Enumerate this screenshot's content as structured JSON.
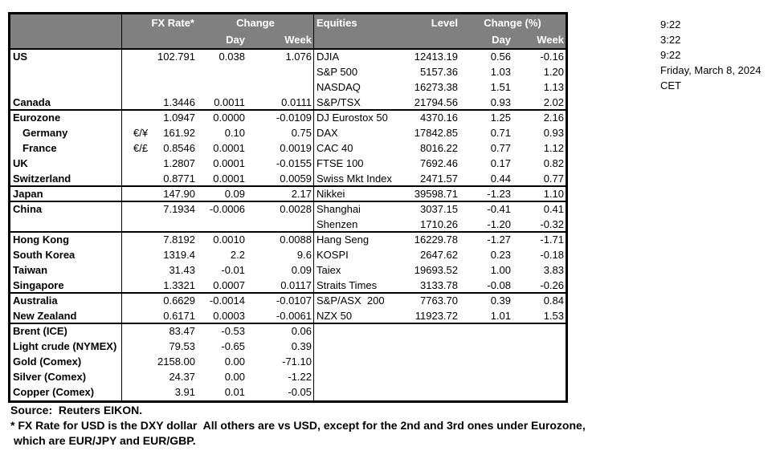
{
  "colors": {
    "header_bg": "#808080",
    "header_text": "#ffffff",
    "border": "#000000",
    "background": "#ffffff"
  },
  "header": {
    "fx": {
      "rate": "FX Rate*",
      "change": "Change",
      "day": "Day",
      "week": "Week"
    },
    "equities": {
      "label": "Equities",
      "level": "Level",
      "change": "Change (%)",
      "day": "Day",
      "week": "Week"
    }
  },
  "fx_rows": [
    {
      "label": "US",
      "pair": "",
      "rate": "102.791",
      "day": "0.038",
      "week": "1.076",
      "indent": false,
      "end": false
    },
    {
      "label": "",
      "pair": "",
      "rate": "",
      "day": "",
      "week": "",
      "indent": false,
      "end": false
    },
    {
      "label": "",
      "pair": "",
      "rate": "",
      "day": "",
      "week": "",
      "indent": false,
      "end": false
    },
    {
      "label": "Canada",
      "pair": "",
      "rate": "1.3446",
      "day": "0.0011",
      "week": "0.0111",
      "indent": false,
      "end": true
    },
    {
      "label": "Eurozone",
      "pair": "",
      "rate": "1.0947",
      "day": "0.0000",
      "week": "-0.0109",
      "indent": false,
      "end": false
    },
    {
      "label": "Germany",
      "pair": "€/¥",
      "rate": "161.92",
      "day": "0.10",
      "week": "0.75",
      "indent": true,
      "end": false
    },
    {
      "label": "France",
      "pair": "€/£",
      "rate": "0.8546",
      "day": "0.0001",
      "week": "0.0019",
      "indent": true,
      "end": false
    },
    {
      "label": "UK",
      "pair": "",
      "rate": "1.2807",
      "day": "0.0001",
      "week": "-0.0155",
      "indent": false,
      "end": false
    },
    {
      "label": "Switzerland",
      "pair": "",
      "rate": "0.8771",
      "day": "0.0001",
      "week": "0.0059",
      "indent": false,
      "end": true
    },
    {
      "label": "Japan",
      "pair": "",
      "rate": "147.90",
      "day": "0.09",
      "week": "2.17",
      "indent": false,
      "end": true
    },
    {
      "label": "China",
      "pair": "",
      "rate": "7.1934",
      "day": "-0.0006",
      "week": "0.0028",
      "indent": false,
      "end": false
    },
    {
      "label": "",
      "pair": "",
      "rate": "",
      "day": "",
      "week": "",
      "indent": false,
      "end": true
    },
    {
      "label": "Hong Kong",
      "pair": "",
      "rate": "7.8192",
      "day": "0.0010",
      "week": "0.0088",
      "indent": false,
      "end": false
    },
    {
      "label": "South Korea",
      "pair": "",
      "rate": "1319.4",
      "day": "2.2",
      "week": "9.6",
      "indent": false,
      "end": false
    },
    {
      "label": "Taiwan",
      "pair": "",
      "rate": "31.43",
      "day": "-0.01",
      "week": "0.09",
      "indent": false,
      "end": false
    },
    {
      "label": "Singapore",
      "pair": "",
      "rate": "1.3321",
      "day": "0.0007",
      "week": "0.0117",
      "indent": false,
      "end": true
    },
    {
      "label": "Australia",
      "pair": "",
      "rate": "0.6629",
      "day": "-0.0014",
      "week": "-0.0107",
      "indent": false,
      "end": false
    },
    {
      "label": "New Zealand",
      "pair": "",
      "rate": "0.6171",
      "day": "0.0003",
      "week": "-0.0061",
      "indent": false,
      "end": true
    },
    {
      "label": "Brent (ICE)",
      "pair": "",
      "rate": "83.47",
      "day": "-0.53",
      "week": "0.06",
      "indent": false,
      "end": false
    },
    {
      "label": "Light crude (NYMEX)",
      "pair": "",
      "rate": "79.53",
      "day": "-0.65",
      "week": "0.39",
      "indent": false,
      "end": false
    },
    {
      "label": "Gold (Comex)",
      "pair": "",
      "rate": "2158.00",
      "day": "0.00",
      "week": "-71.10",
      "indent": false,
      "end": false
    },
    {
      "label": "Silver (Comex)",
      "pair": "",
      "rate": "24.37",
      "day": "0.00",
      "week": "-1.22",
      "indent": false,
      "end": false
    },
    {
      "label": "Copper (Comex)",
      "pair": "",
      "rate": "3.91",
      "day": "0.01",
      "week": "-0.05",
      "indent": false,
      "end": false
    }
  ],
  "equity_rows": [
    {
      "label": "DJIA",
      "level": "12413.19",
      "day": "0.56",
      "week": "-0.16",
      "end": false
    },
    {
      "label": "S&P 500",
      "level": "5157.36",
      "day": "1.03",
      "week": "1.20",
      "end": false
    },
    {
      "label": "NASDAQ",
      "level": "16273.38",
      "day": "1.51",
      "week": "1.13",
      "end": false
    },
    {
      "label": "S&P/TSX",
      "level": "21794.56",
      "day": "0.93",
      "week": "2.02",
      "end": true
    },
    {
      "label": "DJ Eurostox 50",
      "level": "4370.16",
      "day": "1.25",
      "week": "2.16",
      "end": false
    },
    {
      "label": "DAX",
      "level": "17842.85",
      "day": "0.71",
      "week": "0.93",
      "end": false
    },
    {
      "label": "CAC 40",
      "level": "8016.22",
      "day": "0.77",
      "week": "1.12",
      "end": false
    },
    {
      "label": "FTSE 100",
      "level": "7692.46",
      "day": "0.17",
      "week": "0.82",
      "end": false
    },
    {
      "label": "Swiss Mkt Index",
      "level": "2471.57",
      "day": "0.44",
      "week": "0.77",
      "end": true
    },
    {
      "label": "Nikkei",
      "level": "39598.71",
      "day": "-1.23",
      "week": "1.10",
      "end": true
    },
    {
      "label": "Shanghai",
      "level": "3037.15",
      "day": "-0.41",
      "week": "0.41",
      "end": false
    },
    {
      "label": "Shenzen",
      "level": "1710.26",
      "day": "-1.20",
      "week": "-0.32",
      "end": true
    },
    {
      "label": "Hang Seng",
      "level": "16229.78",
      "day": "-1.27",
      "week": "-1.71",
      "end": false
    },
    {
      "label": "KOSPI",
      "level": "2647.62",
      "day": "0.23",
      "week": "-0.18",
      "end": false
    },
    {
      "label": "Taiex",
      "level": "19693.52",
      "day": "1.00",
      "week": "3.83",
      "end": false
    },
    {
      "label": "Straits Times",
      "level": "3133.78",
      "day": "-0.08",
      "week": "-0.26",
      "end": true
    },
    {
      "label": "S&P/ASX  200",
      "level": "7763.70",
      "day": "0.39",
      "week": "0.84",
      "end": false
    },
    {
      "label": "NZX 50",
      "level": "11923.72",
      "day": "1.01",
      "week": "1.53",
      "end": true
    },
    {
      "label": "",
      "level": "",
      "day": "",
      "week": "",
      "end": false
    },
    {
      "label": "",
      "level": "",
      "day": "",
      "week": "",
      "end": false
    },
    {
      "label": "",
      "level": "",
      "day": "",
      "week": "",
      "end": false
    },
    {
      "label": "",
      "level": "",
      "day": "",
      "week": "",
      "end": false
    },
    {
      "label": "",
      "level": "",
      "day": "",
      "week": "",
      "end": false
    }
  ],
  "clock": {
    "lines": [
      "9:22",
      "3:22",
      "9:22",
      "Friday, March 8, 2024",
      "CET"
    ]
  },
  "footer": {
    "source": "Source:  Reuters EIKON.",
    "note1": "* FX Rate for USD is the DXY dollar  All others are vs USD, except for the 2nd and 3rd ones under Eurozone,",
    "note2": "which are EUR/JPY and EUR/GBP."
  }
}
